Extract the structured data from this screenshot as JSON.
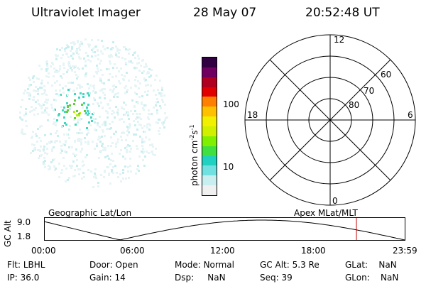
{
  "header": {
    "title": "Ultraviolet Imager",
    "date": "28 May 07",
    "time": "20:52:48 UT"
  },
  "colorbar": {
    "label": "photon cm",
    "label_exp1": "-2",
    "label_s": "s",
    "label_exp2": "-1",
    "ticks": [
      "100",
      "10"
    ],
    "colors": [
      "#f0f0f0",
      "#c8eef0",
      "#70e0e0",
      "#20d0c0",
      "#40e040",
      "#80f000",
      "#d0f000",
      "#f0f000",
      "#ffc000",
      "#ff8000",
      "#e00000",
      "#b00020",
      "#700060",
      "#300040"
    ]
  },
  "polar": {
    "mlt_labels": [
      "12",
      "18",
      "6",
      "0"
    ],
    "lat_labels": [
      "60",
      "70",
      "80"
    ]
  },
  "timeline": {
    "left_label": "Geographic Lat/Lon",
    "right_label": "Apex MLat/MLT",
    "axis_title": "GC Alt",
    "y_ticks": [
      "9.0",
      "1.8"
    ],
    "x_ticks": [
      "00:00",
      "06:00",
      "12:00",
      "18:00",
      "23:59"
    ],
    "marker_time": "20:52"
  },
  "info": {
    "row1": [
      {
        "label": "Flt:",
        "value": "LBHL"
      },
      {
        "label": "Door:",
        "value": "Open"
      },
      {
        "label": "Mode:",
        "value": "Normal"
      },
      {
        "label": "GC Alt:",
        "value": "5.3 Re"
      },
      {
        "label": "GLat:",
        "value": "NaN"
      }
    ],
    "row2": [
      {
        "label": "IP:",
        "value": "36.0"
      },
      {
        "label": "Gain:",
        "value": "14"
      },
      {
        "label": "Dsp:",
        "value": "NaN"
      },
      {
        "label": "Seq:",
        "value": "39"
      },
      {
        "label": "GLon:",
        "value": "NaN"
      }
    ]
  }
}
